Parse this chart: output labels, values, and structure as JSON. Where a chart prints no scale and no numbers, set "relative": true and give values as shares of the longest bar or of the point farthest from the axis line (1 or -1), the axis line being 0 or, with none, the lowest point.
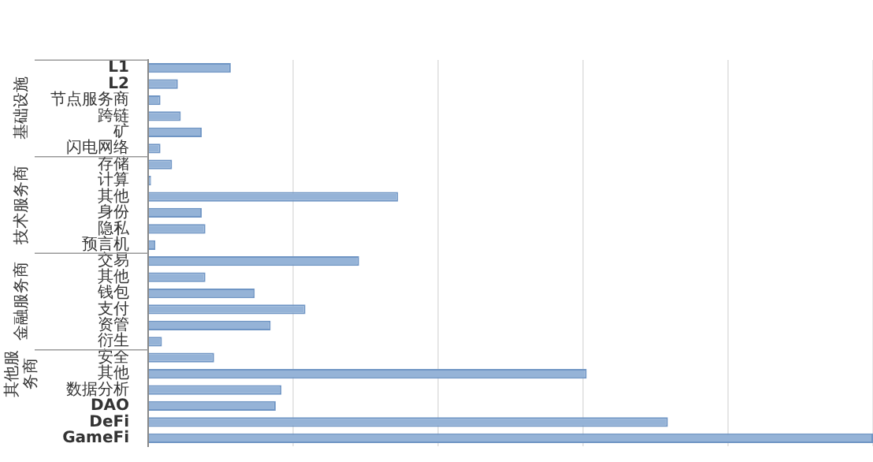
{
  "chart_data": {
    "type": "bar",
    "orientation": "horizontal",
    "relative": true,
    "grid": "x",
    "legend": false,
    "categories": [
      "L1",
      "L2",
      "节点服务商",
      "跨链",
      "矿",
      "闪电网络",
      "存储",
      "计算",
      "其他",
      "身份",
      "隐私",
      "预言机",
      "交易",
      "其他",
      "钱包",
      "支付",
      "资管",
      "衍生",
      "安全",
      "其他",
      "数据分析",
      "DAO",
      "DeFi",
      "GameFi"
    ],
    "values": [
      0.114,
      0.041,
      0.017,
      0.045,
      0.074,
      0.017,
      0.033,
      0.004,
      0.345,
      0.074,
      0.079,
      0.01,
      0.291,
      0.079,
      0.147,
      0.217,
      0.169,
      0.019,
      0.091,
      0.605,
      0.184,
      0.176,
      0.717,
      1
    ],
    "color": "#95b3d7",
    "annotations": [
      "基础设施",
      "技术服务商",
      "金融服务商",
      "其他服务商"
    ]
  }
}
